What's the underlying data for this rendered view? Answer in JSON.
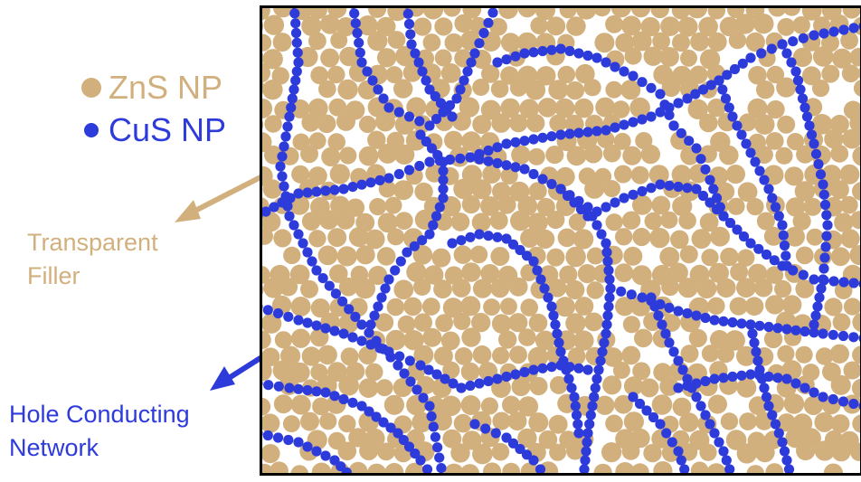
{
  "legend": {
    "zns_label": "ZnS NP",
    "cus_label": "CuS NP"
  },
  "annotations": {
    "filler_label": "Transparent\nFiller",
    "network_label": "Hole Conducting\nNetwork"
  },
  "colors": {
    "zns": "#d2b07e",
    "cus": "#2e3bdb",
    "frame": "#000000"
  }
}
